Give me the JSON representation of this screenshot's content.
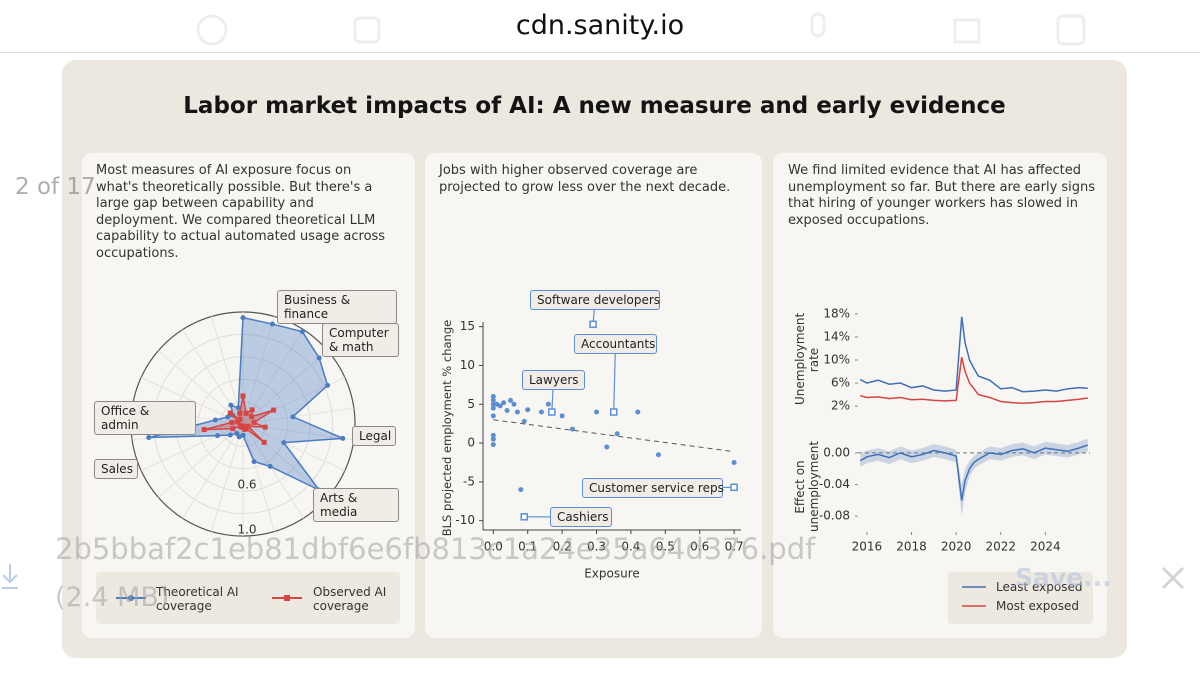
{
  "browser": {
    "url": "cdn.sanity.io"
  },
  "viewer": {
    "page_indicator": "2 of 17",
    "file_name": "2b5bbaf2c1eb81dbf6e6fb813c1a24e35a64d376.pdf",
    "file_size": "(2.4 MB)",
    "save_button": "Save..."
  },
  "slide": {
    "title": "Labor market impacts of AI: A new measure and early evidence"
  },
  "chart_data": [
    {
      "type": "radar",
      "subtitle": "Most measures of AI exposure focus on what's theoretically possible. But there's a large gap between capability and deployment. We compared theoretical LLM capability to actual automated usage across occupations.",
      "categories": [
        null,
        null,
        "Business & finance",
        null,
        "Computer & math",
        null,
        "Legal",
        null,
        "Arts & media",
        null,
        null,
        null,
        null,
        null,
        null,
        "Sales",
        "Office & admin",
        null,
        null,
        null,
        null,
        null
      ],
      "rlim": [
        0,
        1
      ],
      "rgrid": [
        0.2,
        0.4,
        0.6,
        0.8,
        1
      ],
      "rticks": [
        0.6,
        {
          "value": 1,
          "label": "1.0"
        }
      ],
      "series": [
        {
          "name": "Theoretical AI coverage",
          "color": "#4a7cc4",
          "values": [
            0.95,
            0.93,
            0.98,
            0.9,
            0.83,
            0.45,
            0.9,
            0.4,
            0.9,
            0.45,
            0.35,
            0.1,
            0.12,
            0.1,
            0.15,
            0.25,
            0.85,
            0.25,
            0.15,
            0.12,
            0.2,
            0.15
          ]
        },
        {
          "name": "Observed AI coverage",
          "color": "#d64541",
          "values": [
            0.25,
            0.1,
            0.15,
            0.1,
            0.3,
            0.1,
            0.2,
            0.05,
            0.25,
            0.05,
            0.05,
            0.02,
            0.03,
            0.02,
            0.03,
            0.1,
            0.35,
            0.1,
            0.05,
            0.15,
            0.05,
            0.1
          ]
        }
      ]
    },
    {
      "type": "scatter",
      "subtitle": "Jobs with higher observed coverage are projected to grow less over the next decade.",
      "xlabel": "Exposure",
      "ylabel": "BLS projected employment % change",
      "color": "#5b8fd4",
      "xlim": [
        -0.03,
        0.72
      ],
      "ylim": [
        -11.2,
        15.6
      ],
      "xticks": [
        {
          "value": 0,
          "label": "0.0"
        },
        0.1,
        0.2,
        0.3,
        0.4,
        0.5,
        0.6,
        0.7
      ],
      "yticks": [
        -10,
        -5,
        0,
        5,
        10,
        15
      ],
      "x": [
        0,
        0,
        0,
        0,
        0,
        0,
        0,
        0,
        0.01,
        0.02,
        0.03,
        0.05,
        0.06,
        0.07,
        0.08,
        0.1,
        0.14,
        0.16,
        0.2,
        0.23,
        0.3,
        0.33,
        0.36,
        0.42,
        0.48,
        0.7,
        0.09,
        0.04
      ],
      "values": [
        6,
        5.5,
        5,
        4.5,
        3.5,
        1,
        0.5,
        -0.2,
        5,
        4.8,
        5.2,
        5.5,
        5,
        4,
        -6,
        4.3,
        4,
        5,
        3.5,
        1.8,
        4,
        -0.5,
        1.2,
        4,
        -1.5,
        -2.5,
        2.8,
        4.2
      ],
      "highlights": [
        {
          "label": "Software developers",
          "x": 0.29,
          "y": 15.3
        },
        {
          "label": "Accountants",
          "x": 0.35,
          "y": 4
        },
        {
          "label": "Lawyers",
          "x": 0.17,
          "y": 4
        },
        {
          "label": "Customer service reps",
          "x": 0.7,
          "y": -5.7
        },
        {
          "label": "Cashiers",
          "x": 0.09,
          "y": -9.5
        }
      ],
      "trend": {
        "x": [
          0,
          0.7
        ],
        "values": [
          3,
          -1.1
        ]
      }
    },
    {
      "type": "line",
      "subtitle": "We find limited evidence that AI has affected unemployment so far. But there are early signs that hiring of younger workers has slowed in exposed occupations.",
      "ylabel": "Unemployment rate",
      "legend": "lower right",
      "x": [
        2015.7,
        2016,
        2016.5,
        2017,
        2017.5,
        2018,
        2018.5,
        2019,
        2019.5,
        2020,
        2020.25,
        2020.4,
        2020.6,
        2020.8,
        2021,
        2021.5,
        2022,
        2022.5,
        2023,
        2023.5,
        2024,
        2024.5,
        2025,
        2025.5,
        2025.9
      ],
      "xlim": [
        2015.6,
        2026
      ],
      "ylim": [
        1.5,
        18.5
      ],
      "yticks": [
        {
          "value": 2,
          "label": "2%"
        },
        {
          "value": 6,
          "label": "6%"
        },
        {
          "value": 10,
          "label": "10%"
        },
        {
          "value": 14,
          "label": "14%"
        },
        {
          "value": 18,
          "label": "18%"
        }
      ],
      "series": [
        {
          "name": "Least exposed",
          "color": "#3f6fb8",
          "values": [
            6.6,
            6.0,
            6.5,
            5.8,
            6.0,
            5.2,
            5.5,
            4.8,
            4.6,
            4.8,
            17.5,
            13,
            10,
            8.5,
            7.2,
            6.5,
            5.0,
            5.2,
            4.5,
            4.6,
            4.8,
            4.6,
            5.0,
            5.2,
            5.1
          ]
        },
        {
          "name": "Most exposed",
          "color": "#d64541",
          "values": [
            3.8,
            3.5,
            3.6,
            3.3,
            3.5,
            3.1,
            3.2,
            3.0,
            2.9,
            3.0,
            10.5,
            8,
            6,
            5,
            4,
            3.5,
            2.8,
            2.6,
            2.5,
            2.6,
            2.8,
            2.8,
            3.0,
            3.2,
            3.4
          ]
        }
      ]
    },
    {
      "type": "line",
      "ylabel": "Effect on unemployment",
      "hline": 0,
      "x": [
        2015.7,
        2016,
        2016.5,
        2017,
        2017.5,
        2018,
        2018.5,
        2019,
        2019.5,
        2020,
        2020.25,
        2020.4,
        2020.6,
        2020.8,
        2021,
        2021.5,
        2022,
        2022.5,
        2023,
        2023.5,
        2024,
        2024.5,
        2025,
        2025.5,
        2025.9
      ],
      "xlim": [
        2015.6,
        2026
      ],
      "ylim": [
        -0.1,
        0.015
      ],
      "xticks": [
        2016,
        2018,
        2020,
        2022,
        2024
      ],
      "yticks": [
        {
          "value": 0,
          "label": "0.00"
        },
        {
          "value": -0.04,
          "label": "-0.04"
        },
        {
          "value": -0.08,
          "label": "-0.08"
        }
      ],
      "series": [
        {
          "color": "#3f6fb8",
          "values": [
            -0.01,
            -0.005,
            -0.002,
            -0.006,
            0,
            -0.005,
            -0.002,
            0.003,
            0,
            -0.004,
            -0.06,
            -0.035,
            -0.02,
            -0.012,
            -0.008,
            0,
            -0.002,
            0.003,
            0.005,
            0,
            0.006,
            0.004,
            0.002,
            0.006,
            0.01
          ],
          "band_high": [
            -0.002,
            0.003,
            0.006,
            0.002,
            0.008,
            0.003,
            0.006,
            0.011,
            0.008,
            0.004,
            -0.04,
            -0.02,
            -0.01,
            -0.004,
            0,
            0.008,
            0.006,
            0.011,
            0.013,
            0.008,
            0.014,
            0.012,
            0.01,
            0.014,
            0.018
          ],
          "band_low": [
            -0.018,
            -0.013,
            -0.01,
            -0.014,
            -0.008,
            -0.013,
            -0.01,
            -0.005,
            -0.008,
            -0.012,
            -0.08,
            -0.05,
            -0.03,
            -0.02,
            -0.016,
            -0.008,
            -0.01,
            -0.005,
            -0.003,
            -0.008,
            -0.002,
            -0.004,
            -0.006,
            -0.002,
            0.002
          ]
        }
      ]
    }
  ]
}
